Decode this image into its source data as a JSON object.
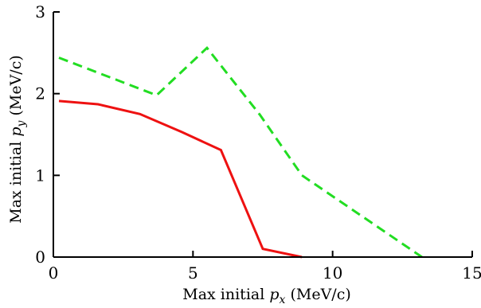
{
  "chart_data": {
    "type": "line",
    "title": "",
    "xlabel": "Max initial p_x (MeV/c)",
    "ylabel": "Max initial p_y (MeV/c)",
    "xlabel_parts": {
      "prefix": "Max initial ",
      "var": "p",
      "sub": "x",
      "suffix": " (MeV/c)"
    },
    "ylabel_parts": {
      "prefix": "Max initial ",
      "var": "p",
      "sub": "y",
      "suffix": " (MeV/c)"
    },
    "xlim": [
      0,
      15
    ],
    "ylim": [
      0,
      3
    ],
    "xticks": [
      0,
      5,
      10,
      15
    ],
    "xtick_labels": [
      "0",
      "5",
      "10",
      "15"
    ],
    "yticks": [
      0,
      1,
      2,
      3
    ],
    "ytick_labels": [
      "0",
      "1",
      "2",
      "3"
    ],
    "grid": false,
    "series": [
      {
        "color": "#ee1111",
        "style": "solid",
        "x": [
          0.2,
          1.6,
          3.1,
          4.6,
          6.0,
          7.5,
          8.9
        ],
        "y": [
          1.91,
          1.87,
          1.75,
          1.53,
          1.31,
          0.1,
          0.0
        ]
      },
      {
        "color": "#22dd22",
        "style": "dashed",
        "x": [
          0.2,
          3.7,
          5.5,
          7.4,
          8.9,
          13.2
        ],
        "y": [
          2.44,
          1.98,
          2.56,
          1.74,
          1.0,
          0.0
        ]
      }
    ]
  }
}
